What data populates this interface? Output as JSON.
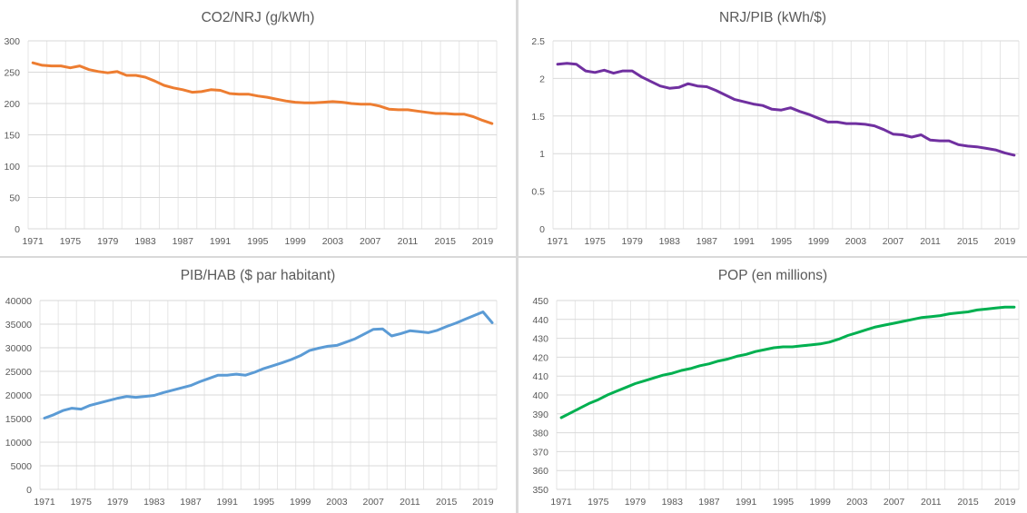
{
  "chart_data": [
    {
      "id": "co2-nrj",
      "type": "line",
      "title": "CO2/NRJ (g/kWh)",
      "xlabel": "",
      "ylabel": "",
      "color": "#ED7D31",
      "ylim": [
        0,
        300
      ],
      "yticks": [
        0,
        50,
        100,
        150,
        200,
        250,
        300
      ],
      "xlim": [
        1971,
        2020
      ],
      "xticks": [
        1971,
        1975,
        1979,
        1983,
        1987,
        1991,
        1995,
        1999,
        2003,
        2007,
        2011,
        2015,
        2019
      ],
      "grid": true,
      "series": [
        {
          "name": "CO2/NRJ",
          "x": [
            1971,
            1972,
            1973,
            1974,
            1975,
            1976,
            1977,
            1978,
            1979,
            1980,
            1981,
            1982,
            1983,
            1984,
            1985,
            1986,
            1987,
            1988,
            1989,
            1990,
            1991,
            1992,
            1993,
            1994,
            1995,
            1996,
            1997,
            1998,
            1999,
            2000,
            2001,
            2002,
            2003,
            2004,
            2005,
            2006,
            2007,
            2008,
            2009,
            2010,
            2011,
            2012,
            2013,
            2014,
            2015,
            2016,
            2017,
            2018,
            2019,
            2020
          ],
          "values": [
            265,
            261,
            260,
            260,
            257,
            260,
            254,
            251,
            249,
            251,
            245,
            245,
            242,
            236,
            229,
            225,
            222,
            218,
            219,
            222,
            221,
            216,
            215,
            215,
            212,
            210,
            207,
            204,
            202,
            201,
            201,
            202,
            203,
            202,
            200,
            199,
            199,
            196,
            191,
            190,
            190,
            188,
            186,
            184,
            184,
            183,
            183,
            179,
            173,
            168
          ]
        }
      ]
    },
    {
      "id": "nrj-pib",
      "type": "line",
      "title": "NRJ/PIB (kWh/$)",
      "xlabel": "",
      "ylabel": "",
      "color": "#7030A0",
      "ylim": [
        0,
        2.5
      ],
      "yticks": [
        0,
        0.5,
        1,
        1.5,
        2,
        2.5
      ],
      "xlim": [
        1971,
        2020
      ],
      "xticks": [
        1971,
        1975,
        1979,
        1983,
        1987,
        1991,
        1995,
        1999,
        2003,
        2007,
        2011,
        2015,
        2019
      ],
      "grid": true,
      "series": [
        {
          "name": "NRJ/PIB",
          "x": [
            1971,
            1972,
            1973,
            1974,
            1975,
            1976,
            1977,
            1978,
            1979,
            1980,
            1981,
            1982,
            1983,
            1984,
            1985,
            1986,
            1987,
            1988,
            1989,
            1990,
            1991,
            1992,
            1993,
            1994,
            1995,
            1996,
            1997,
            1998,
            1999,
            2000,
            2001,
            2002,
            2003,
            2004,
            2005,
            2006,
            2007,
            2008,
            2009,
            2010,
            2011,
            2012,
            2013,
            2014,
            2015,
            2016,
            2017,
            2018,
            2019,
            2020
          ],
          "values": [
            2.19,
            2.2,
            2.19,
            2.1,
            2.08,
            2.11,
            2.07,
            2.1,
            2.1,
            2.02,
            1.96,
            1.9,
            1.87,
            1.88,
            1.93,
            1.9,
            1.89,
            1.84,
            1.78,
            1.72,
            1.69,
            1.66,
            1.64,
            1.59,
            1.58,
            1.61,
            1.56,
            1.52,
            1.47,
            1.42,
            1.42,
            1.4,
            1.4,
            1.39,
            1.37,
            1.32,
            1.26,
            1.25,
            1.22,
            1.25,
            1.18,
            1.17,
            1.17,
            1.12,
            1.1,
            1.09,
            1.07,
            1.05,
            1.01,
            0.98
          ]
        }
      ]
    },
    {
      "id": "pib-hab",
      "type": "line",
      "title": "PIB/HAB ($ par habitant)",
      "xlabel": "",
      "ylabel": "",
      "color": "#5B9BD5",
      "ylim": [
        0,
        40000
      ],
      "yticks": [
        0,
        5000,
        10000,
        15000,
        20000,
        25000,
        30000,
        35000,
        40000
      ],
      "xlim": [
        1971,
        2020
      ],
      "xticks": [
        1971,
        1975,
        1979,
        1983,
        1987,
        1991,
        1995,
        1999,
        2003,
        2007,
        2011,
        2015,
        2019
      ],
      "grid": true,
      "series": [
        {
          "name": "PIB/HAB",
          "x": [
            1971,
            1972,
            1973,
            1974,
            1975,
            1976,
            1977,
            1978,
            1979,
            1980,
            1981,
            1982,
            1983,
            1984,
            1985,
            1986,
            1987,
            1988,
            1989,
            1990,
            1991,
            1992,
            1993,
            1994,
            1995,
            1996,
            1997,
            1998,
            1999,
            2000,
            2001,
            2002,
            2003,
            2004,
            2005,
            2006,
            2007,
            2008,
            2009,
            2010,
            2011,
            2012,
            2013,
            2014,
            2015,
            2016,
            2017,
            2018,
            2019,
            2020
          ],
          "values": [
            15100,
            15800,
            16700,
            17200,
            17000,
            17800,
            18300,
            18800,
            19300,
            19700,
            19500,
            19700,
            19900,
            20500,
            21000,
            21500,
            22000,
            22800,
            23500,
            24200,
            24200,
            24400,
            24200,
            24800,
            25600,
            26200,
            26800,
            27500,
            28300,
            29400,
            29900,
            30300,
            30500,
            31200,
            31900,
            32900,
            33900,
            34000,
            32500,
            33000,
            33600,
            33400,
            33200,
            33700,
            34500,
            35200,
            36000,
            36800,
            37600,
            35300
          ]
        }
      ]
    },
    {
      "id": "pop",
      "type": "line",
      "title": "POP (en millions)",
      "xlabel": "",
      "ylabel": "",
      "color": "#00B050",
      "ylim": [
        350,
        450
      ],
      "yticks": [
        350,
        360,
        370,
        380,
        390,
        400,
        410,
        420,
        430,
        440,
        450
      ],
      "xlim": [
        1971,
        2020
      ],
      "xticks": [
        1971,
        1975,
        1979,
        1983,
        1987,
        1991,
        1995,
        1999,
        2003,
        2007,
        2011,
        2015,
        2019
      ],
      "grid": true,
      "series": [
        {
          "name": "POP",
          "x": [
            1971,
            1972,
            1973,
            1974,
            1975,
            1976,
            1977,
            1978,
            1979,
            1980,
            1981,
            1982,
            1983,
            1984,
            1985,
            1986,
            1987,
            1988,
            1989,
            1990,
            1991,
            1992,
            1993,
            1994,
            1995,
            1996,
            1997,
            1998,
            1999,
            2000,
            2001,
            2002,
            2003,
            2004,
            2005,
            2006,
            2007,
            2008,
            2009,
            2010,
            2011,
            2012,
            2013,
            2014,
            2015,
            2016,
            2017,
            2018,
            2019,
            2020
          ],
          "values": [
            388,
            390.5,
            393,
            395.5,
            397.5,
            400,
            402,
            404,
            406,
            407.5,
            409,
            410.5,
            411.5,
            413,
            414,
            415.5,
            416.5,
            418,
            419,
            420.5,
            421.5,
            423,
            424,
            425,
            425.5,
            425.5,
            426,
            426.5,
            427,
            428,
            429.5,
            431.5,
            433,
            434.5,
            436,
            437,
            438,
            439,
            440,
            441,
            441.5,
            442,
            443,
            443.5,
            444,
            445,
            445.5,
            446,
            446.5,
            446.5
          ]
        }
      ]
    }
  ]
}
